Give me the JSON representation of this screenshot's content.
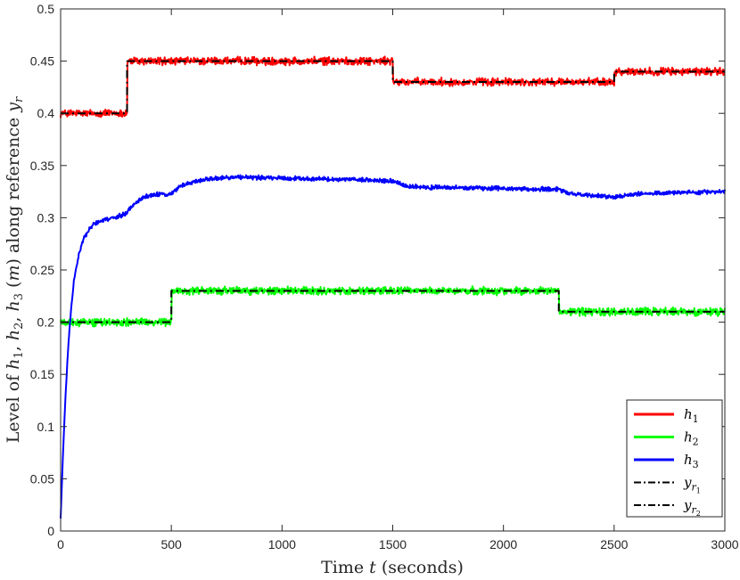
{
  "chart_data": {
    "type": "line",
    "xlabel": "Time t (seconds)",
    "ylabel": "Level of h1, h2, h3 (m) along reference yr",
    "xlim": [
      0,
      3000
    ],
    "ylim": [
      0,
      0.5
    ],
    "xticks": [
      0,
      500,
      1000,
      1500,
      2000,
      2500,
      3000
    ],
    "xtick_labels": [
      "0",
      "500",
      "1000",
      "1500",
      "2000",
      "2500",
      "3000"
    ],
    "yticks": [
      0,
      0.05,
      0.1,
      0.15,
      0.2,
      0.25,
      0.3,
      0.35,
      0.4,
      0.45,
      0.5
    ],
    "ytick_labels": [
      "0",
      "0.05",
      "0.1",
      "0.15",
      "0.2",
      "0.25",
      "0.3",
      "0.35",
      "0.4",
      "0.45",
      "0.5"
    ],
    "grid": false,
    "legend_position": "bottom-right",
    "series": [
      {
        "name": "h1",
        "color": "#ff0000",
        "style": "solid",
        "noise": 0.0045,
        "x": [
          0,
          300,
          300,
          1500,
          1500,
          2500,
          2500,
          3000
        ],
        "y": [
          0.4,
          0.4,
          0.45,
          0.45,
          0.43,
          0.43,
          0.44,
          0.44
        ]
      },
      {
        "name": "h2",
        "color": "#00ff00",
        "style": "solid",
        "noise": 0.0045,
        "x": [
          0,
          500,
          500,
          2250,
          2250,
          3000
        ],
        "y": [
          0.2,
          0.2,
          0.23,
          0.23,
          0.21,
          0.21
        ]
      },
      {
        "name": "h3",
        "color": "#0000ff",
        "style": "solid",
        "noise": 0.0025,
        "x": [
          0,
          10,
          20,
          30,
          40,
          60,
          80,
          100,
          130,
          160,
          200,
          250,
          300,
          340,
          380,
          420,
          500,
          540,
          600,
          700,
          800,
          1000,
          1200,
          1400,
          1500,
          1560,
          1700,
          2000,
          2250,
          2300,
          2400,
          2500,
          2600,
          2800,
          3000
        ],
        "y": [
          0.012,
          0.07,
          0.12,
          0.16,
          0.195,
          0.24,
          0.263,
          0.278,
          0.29,
          0.295,
          0.298,
          0.3,
          0.305,
          0.315,
          0.32,
          0.322,
          0.323,
          0.33,
          0.335,
          0.338,
          0.339,
          0.338,
          0.337,
          0.336,
          0.335,
          0.33,
          0.329,
          0.328,
          0.327,
          0.323,
          0.321,
          0.32,
          0.323,
          0.324,
          0.325
        ]
      },
      {
        "name": "yr1",
        "color": "#000000",
        "style": "dashdot",
        "x": [
          0,
          300,
          300,
          1500,
          1500,
          2500,
          2500,
          3000
        ],
        "y": [
          0.4,
          0.4,
          0.45,
          0.45,
          0.43,
          0.43,
          0.44,
          0.44
        ]
      },
      {
        "name": "yr2",
        "color": "#000000",
        "style": "dashdot",
        "x": [
          0,
          500,
          500,
          2250,
          2250,
          3000
        ],
        "y": [
          0.2,
          0.2,
          0.23,
          0.23,
          0.21,
          0.21
        ]
      }
    ]
  },
  "legend": [
    {
      "base": "h",
      "sub": "1",
      "color": "#ff0000",
      "style": "solid"
    },
    {
      "base": "h",
      "sub": "2",
      "color": "#00ff00",
      "style": "solid"
    },
    {
      "base": "h",
      "sub": "3",
      "color": "#0000ff",
      "style": "solid"
    },
    {
      "base": "y",
      "sub": "r",
      "subsub": "1",
      "color": "#000000",
      "style": "dashdot"
    },
    {
      "base": "y",
      "sub": "r",
      "subsub": "2",
      "color": "#000000",
      "style": "dashdot"
    }
  ]
}
